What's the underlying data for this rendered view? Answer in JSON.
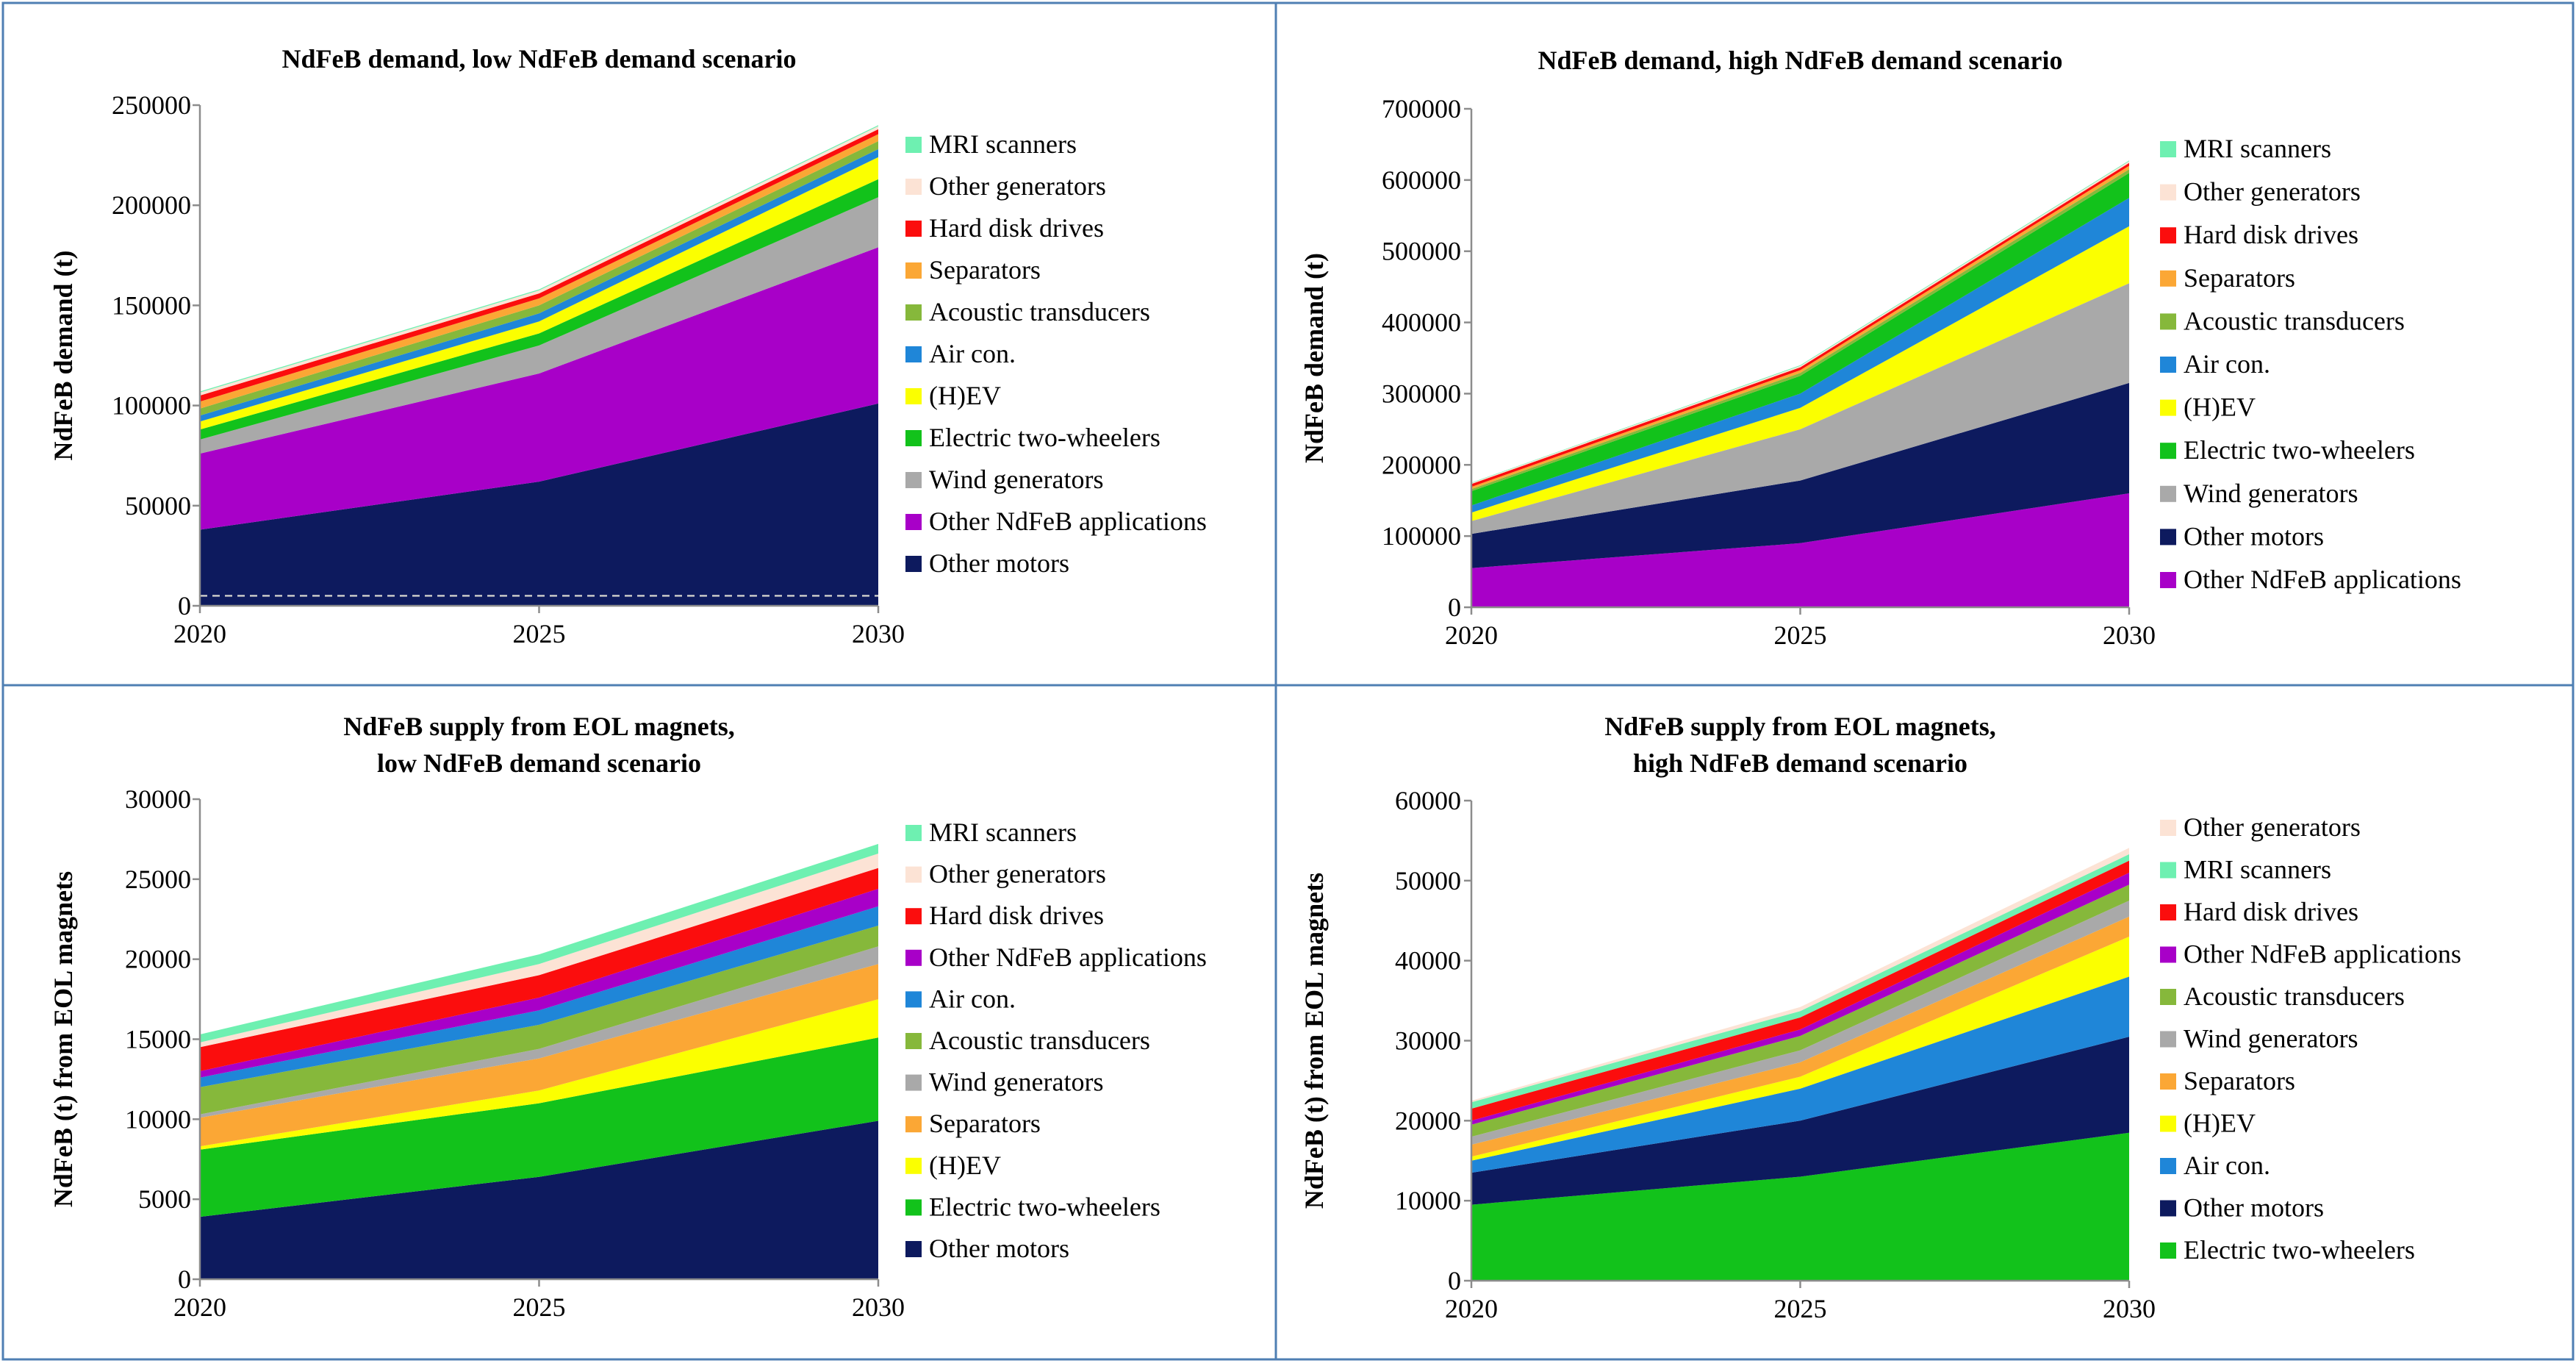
{
  "colors": {
    "frame": "#4f7fb3",
    "axis": "#8c8c8c",
    "text": "#000000",
    "reference_line": "#c8c8c8",
    "series": {
      "Other motors": "#0d1a5e",
      "Other NdFeB applications": "#a800c8",
      "Wind generators": "#a9a9a9",
      "Electric two-wheelers": "#12c21b",
      "(H)EV": "#fbff00",
      "Air con.": "#1f86d8",
      "Acoustic transducers": "#86b83b",
      "Separators": "#fba735",
      "Hard disk drives": "#fb0d0d",
      "Other generators": "#fce3d5",
      "MRI scanners": "#6ef0b1"
    }
  },
  "chart_data": [
    {
      "type": "area",
      "stacked": true,
      "title": "NdFeB demand, low NdFeB demand scenario",
      "xlabel": "",
      "ylabel": "NdFeB demand (t)",
      "x": [
        "2020",
        "2025",
        "2030"
      ],
      "ylim": [
        0,
        250000
      ],
      "yticks": [
        0,
        50000,
        100000,
        150000,
        200000,
        250000
      ],
      "ytick_labels": [
        "0",
        "50000",
        "100000",
        "150000",
        "200000",
        "250000"
      ],
      "reference_line": 5000,
      "series": [
        {
          "name": "Other motors",
          "values": [
            38000,
            62000,
            101000
          ]
        },
        {
          "name": "Other NdFeB applications",
          "values": [
            38000,
            54000,
            78000
          ]
        },
        {
          "name": "Wind generators",
          "values": [
            7000,
            14000,
            25000
          ]
        },
        {
          "name": "Electric two-wheelers",
          "values": [
            5000,
            6000,
            9000
          ]
        },
        {
          "name": "(H)EV",
          "values": [
            4000,
            6000,
            11000
          ]
        },
        {
          "name": "Air con.",
          "values": [
            3000,
            4000,
            4000
          ]
        },
        {
          "name": "Acoustic transducers",
          "values": [
            3500,
            4000,
            4000
          ]
        },
        {
          "name": "Separators",
          "values": [
            3500,
            3500,
            3500
          ]
        },
        {
          "name": "Hard disk drives",
          "values": [
            3000,
            2500,
            2500
          ]
        },
        {
          "name": "Other generators",
          "values": [
            1500,
            1500,
            1500
          ]
        },
        {
          "name": "MRI scanners",
          "values": [
            500,
            500,
            500
          ]
        }
      ],
      "legend": [
        "MRI scanners",
        "Other generators",
        "Hard disk drives",
        "Separators",
        "Acoustic transducers",
        "Air con.",
        "(H)EV",
        "Electric two-wheelers",
        "Wind generators",
        "Other NdFeB applications",
        "Other motors"
      ]
    },
    {
      "type": "area",
      "stacked": true,
      "title": "NdFeB demand, high NdFeB demand scenario",
      "xlabel": "",
      "ylabel": "NdFeB demand (t)",
      "x": [
        "2020",
        "2025",
        "2030"
      ],
      "ylim": [
        0,
        700000
      ],
      "yticks": [
        0,
        100000,
        200000,
        300000,
        400000,
        500000,
        600000,
        700000
      ],
      "ytick_labels": [
        "0",
        "100000",
        "200000",
        "300000",
        "400000",
        "500000",
        "600000",
        "700000"
      ],
      "series": [
        {
          "name": "Other NdFeB applications",
          "values": [
            55000,
            90000,
            160000
          ]
        },
        {
          "name": "Other motors",
          "values": [
            48000,
            88000,
            155000
          ]
        },
        {
          "name": "Wind generators",
          "values": [
            18000,
            72000,
            140000
          ]
        },
        {
          "name": "(H)EV",
          "values": [
            12000,
            30000,
            80000
          ]
        },
        {
          "name": "Air con.",
          "values": [
            10000,
            20000,
            40000
          ]
        },
        {
          "name": "Electric two-wheelers",
          "values": [
            20000,
            25000,
            35000
          ]
        },
        {
          "name": "Acoustic transducers",
          "values": [
            3000,
            4000,
            5000
          ]
        },
        {
          "name": "Separators",
          "values": [
            3000,
            4000,
            5000
          ]
        },
        {
          "name": "Hard disk drives",
          "values": [
            4000,
            4000,
            4000
          ]
        },
        {
          "name": "Other generators",
          "values": [
            1500,
            2000,
            2500
          ]
        },
        {
          "name": "MRI scanners",
          "values": [
            500,
            1000,
            1000
          ]
        }
      ],
      "legend": [
        "MRI scanners",
        "Other generators",
        "Hard disk drives",
        "Separators",
        "Acoustic transducers",
        "Air con.",
        "(H)EV",
        "Electric two-wheelers",
        "Wind generators",
        "Other motors",
        "Other NdFeB applications"
      ]
    },
    {
      "type": "area",
      "stacked": true,
      "title": "NdFeB supply from EOL magnets,\nlow NdFeB demand scenario",
      "xlabel": "",
      "ylabel": "NdFeB (t) from EOL magnets",
      "x": [
        "2020",
        "2025",
        "2030"
      ],
      "ylim": [
        0,
        30000
      ],
      "yticks": [
        0,
        5000,
        10000,
        15000,
        20000,
        25000,
        30000
      ],
      "ytick_labels": [
        "0",
        "5000",
        "10000",
        "15000",
        "20000",
        "25000",
        "30000"
      ],
      "series": [
        {
          "name": "Other motors",
          "values": [
            3900,
            6400,
            9900
          ]
        },
        {
          "name": "Electric two-wheelers",
          "values": [
            4200,
            4600,
            5200
          ]
        },
        {
          "name": "(H)EV",
          "values": [
            200,
            800,
            2400
          ]
        },
        {
          "name": "Separators",
          "values": [
            1800,
            2000,
            2200
          ]
        },
        {
          "name": "Wind generators",
          "values": [
            200,
            600,
            1100
          ]
        },
        {
          "name": "Acoustic transducers",
          "values": [
            1700,
            1500,
            1300
          ]
        },
        {
          "name": "Air con.",
          "values": [
            600,
            900,
            1200
          ]
        },
        {
          "name": "Other NdFeB applications",
          "values": [
            400,
            800,
            1100
          ]
        },
        {
          "name": "Hard disk drives",
          "values": [
            1500,
            1400,
            1300
          ]
        },
        {
          "name": "Other generators",
          "values": [
            300,
            700,
            900
          ]
        },
        {
          "name": "MRI scanners",
          "values": [
            500,
            600,
            600
          ]
        }
      ],
      "legend": [
        "MRI scanners",
        "Other generators",
        "Hard disk drives",
        "Other NdFeB applications",
        "Air con.",
        "Acoustic transducers",
        "Wind generators",
        "Separators",
        "(H)EV",
        "Electric two-wheelers",
        "Other motors"
      ]
    },
    {
      "type": "area",
      "stacked": true,
      "title": "NdFeB supply from EOL magnets,\nhigh NdFeB demand scenario",
      "xlabel": "",
      "ylabel": "NdFeB (t) from EOL magnets",
      "x": [
        "2020",
        "2025",
        "2030"
      ],
      "ylim": [
        0,
        60000
      ],
      "yticks": [
        0,
        10000,
        20000,
        30000,
        40000,
        50000,
        60000
      ],
      "ytick_labels": [
        "0",
        "10000",
        "20000",
        "30000",
        "40000",
        "50000",
        "60000"
      ],
      "series": [
        {
          "name": "Electric two-wheelers",
          "values": [
            9500,
            13000,
            18500
          ]
        },
        {
          "name": "Other motors",
          "values": [
            4000,
            7000,
            12000
          ]
        },
        {
          "name": "Air con.",
          "values": [
            1500,
            4000,
            7500
          ]
        },
        {
          "name": "(H)EV",
          "values": [
            500,
            1500,
            5000
          ]
        },
        {
          "name": "Separators",
          "values": [
            1500,
            1800,
            2500
          ]
        },
        {
          "name": "Wind generators",
          "values": [
            1000,
            1500,
            2000
          ]
        },
        {
          "name": "Acoustic transducers",
          "values": [
            1500,
            1800,
            2000
          ]
        },
        {
          "name": "Other NdFeB applications",
          "values": [
            500,
            800,
            1500
          ]
        },
        {
          "name": "Hard disk drives",
          "values": [
            1500,
            1500,
            1500
          ]
        },
        {
          "name": "MRI scanners",
          "values": [
            800,
            800,
            800
          ]
        },
        {
          "name": "Other generators",
          "values": [
            200,
            500,
            800
          ]
        }
      ],
      "legend": [
        "Other generators",
        "MRI scanners",
        "Hard disk drives",
        "Other NdFeB applications",
        "Acoustic transducers",
        "Wind generators",
        "Separators",
        "(H)EV",
        "Air con.",
        "Other motors",
        "Electric two-wheelers"
      ]
    }
  ]
}
